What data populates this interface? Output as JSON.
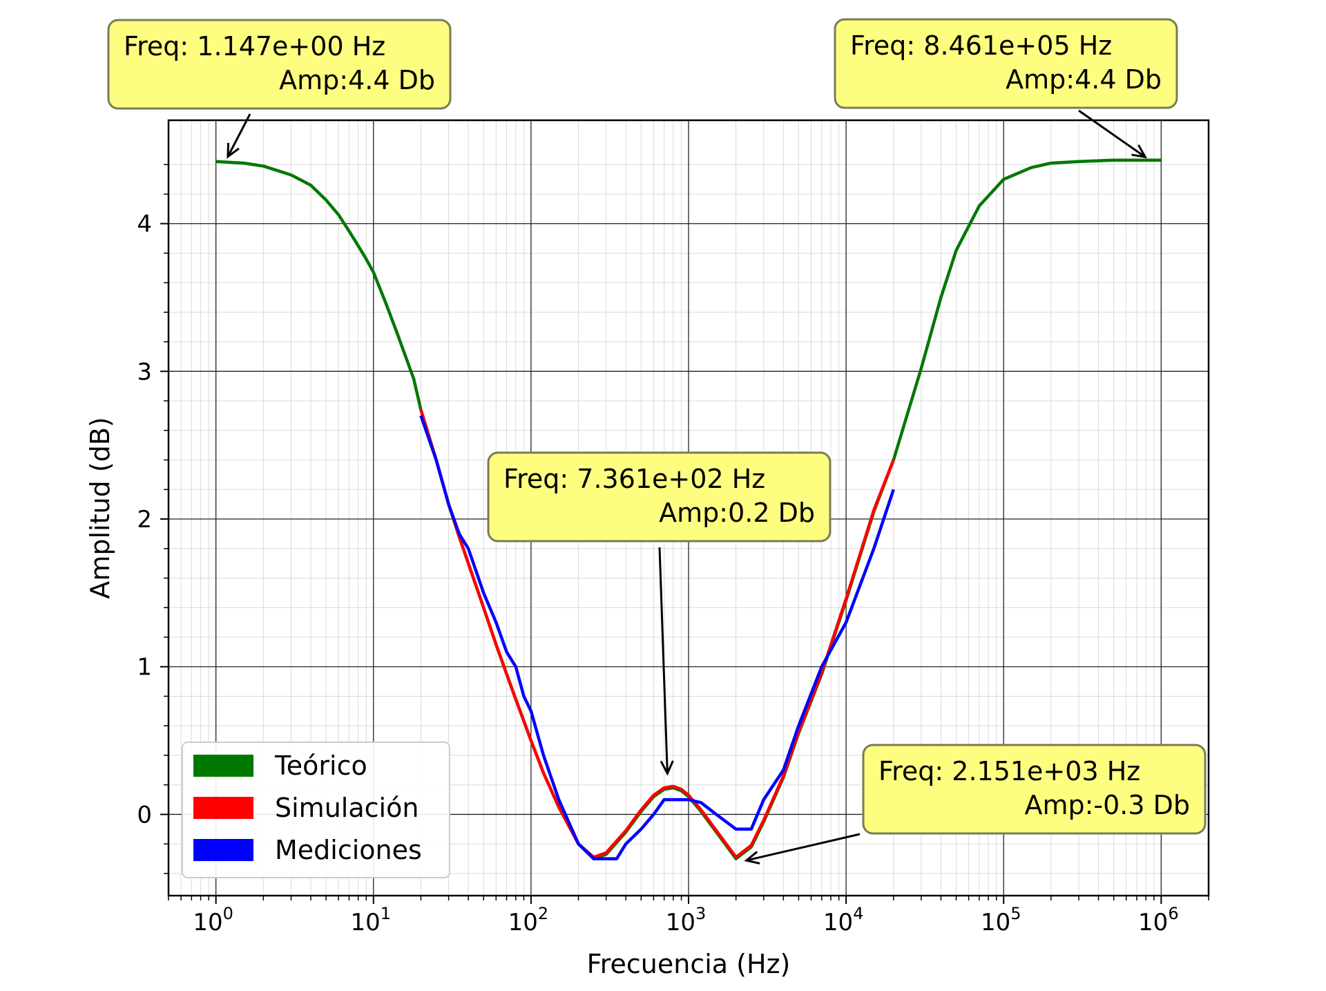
{
  "chart_data": {
    "type": "line",
    "title": "",
    "xlabel": "Frecuencia (Hz)",
    "ylabel": "Amplitud (dB)",
    "xscale": "log",
    "xlim": [
      0.5,
      2000000
    ],
    "ylim": [
      -0.55,
      4.7
    ],
    "x_ticks": [
      {
        "value": 1,
        "base": "10",
        "exp": "0"
      },
      {
        "value": 10,
        "base": "10",
        "exp": "1"
      },
      {
        "value": 100,
        "base": "10",
        "exp": "2"
      },
      {
        "value": 1000,
        "base": "10",
        "exp": "3"
      },
      {
        "value": 10000,
        "base": "10",
        "exp": "4"
      },
      {
        "value": 100000,
        "base": "10",
        "exp": "5"
      },
      {
        "value": 1000000,
        "base": "10",
        "exp": "6"
      }
    ],
    "y_ticks": [
      {
        "value": 0,
        "label": "0"
      },
      {
        "value": 1,
        "label": "1"
      },
      {
        "value": 2,
        "label": "2"
      },
      {
        "value": 3,
        "label": "3"
      },
      {
        "value": 4,
        "label": "4"
      }
    ],
    "grid": true,
    "legend": {
      "position": "lower-left"
    },
    "series": [
      {
        "name": "Teórico",
        "color": "#007800",
        "x": [
          1,
          1.5,
          2,
          3,
          4,
          5,
          6,
          7,
          8,
          9,
          10,
          12,
          14,
          16,
          18,
          20,
          25,
          30,
          35,
          40,
          50,
          60,
          70,
          80,
          100,
          120,
          150,
          200,
          250,
          300,
          400,
          500,
          600,
          700,
          800,
          900,
          1000,
          1200,
          1500,
          2000,
          2500,
          3000,
          4000,
          5000,
          7000,
          10000,
          15000,
          20000,
          30000,
          40000,
          50000,
          70000,
          100000,
          150000,
          200000,
          300000,
          500000,
          700000,
          1000000
        ],
        "y": [
          4.42,
          4.41,
          4.39,
          4.33,
          4.26,
          4.16,
          4.06,
          3.95,
          3.85,
          3.76,
          3.67,
          3.46,
          3.27,
          3.1,
          2.95,
          2.74,
          2.4,
          2.1,
          1.88,
          1.7,
          1.4,
          1.15,
          0.95,
          0.78,
          0.5,
          0.28,
          0.05,
          -0.2,
          -0.3,
          -0.27,
          -0.12,
          0.02,
          0.12,
          0.17,
          0.18,
          0.16,
          0.12,
          0.02,
          -0.12,
          -0.3,
          -0.22,
          -0.05,
          0.25,
          0.55,
          0.95,
          1.45,
          2.05,
          2.4,
          3.02,
          3.5,
          3.82,
          4.12,
          4.3,
          4.38,
          4.41,
          4.42,
          4.43,
          4.43,
          4.43
        ]
      },
      {
        "name": "Simulación",
        "color": "#ff0000",
        "x": [
          20,
          25,
          30,
          35,
          40,
          50,
          60,
          70,
          80,
          100,
          120,
          150,
          200,
          250,
          300,
          400,
          500,
          600,
          700,
          800,
          900,
          1000,
          1200,
          1500,
          2000,
          2500,
          3000,
          4000,
          5000,
          7000,
          10000,
          15000,
          20000
        ],
        "y": [
          2.74,
          2.4,
          2.1,
          1.88,
          1.7,
          1.4,
          1.15,
          0.95,
          0.78,
          0.5,
          0.28,
          0.05,
          -0.2,
          -0.29,
          -0.26,
          -0.11,
          0.03,
          0.13,
          0.18,
          0.19,
          0.17,
          0.13,
          0.03,
          -0.11,
          -0.29,
          -0.21,
          -0.04,
          0.26,
          0.56,
          0.96,
          1.46,
          2.06,
          2.4
        ]
      },
      {
        "name": "Mediciones",
        "color": "#0000ff",
        "x": [
          20,
          25,
          30,
          35,
          40,
          50,
          60,
          70,
          80,
          90,
          100,
          120,
          150,
          200,
          250,
          300,
          350,
          400,
          500,
          600,
          700,
          800,
          900,
          1000,
          1200,
          1500,
          2000,
          2500,
          3000,
          4000,
          5000,
          7000,
          10000,
          15000,
          20000
        ],
        "y": [
          2.7,
          2.4,
          2.1,
          1.9,
          1.8,
          1.5,
          1.3,
          1.1,
          1.0,
          0.8,
          0.7,
          0.4,
          0.1,
          -0.2,
          -0.3,
          -0.3,
          -0.3,
          -0.2,
          -0.1,
          0.0,
          0.1,
          0.1,
          0.1,
          0.1,
          0.08,
          0.0,
          -0.1,
          -0.1,
          0.1,
          0.3,
          0.6,
          1.0,
          1.3,
          1.8,
          2.2
        ]
      }
    ],
    "annotations": [
      {
        "line1": "Freq: 1.147e+00  Hz",
        "line2": "Amp:4.4 Db",
        "x": 1.147,
        "y": 4.42
      },
      {
        "line1": "Freq: 8.461e+05  Hz",
        "line2": "Amp:4.4 Db",
        "x": 846100,
        "y": 4.43
      },
      {
        "line1": "Freq: 7.361e+02  Hz",
        "line2": "Amp:0.2 Db",
        "x": 736.1,
        "y": 0.24
      },
      {
        "line1": "Freq: 2.151e+03  Hz",
        "line2": "Amp:-0.3 Db",
        "x": 2151,
        "y": -0.32
      }
    ]
  }
}
